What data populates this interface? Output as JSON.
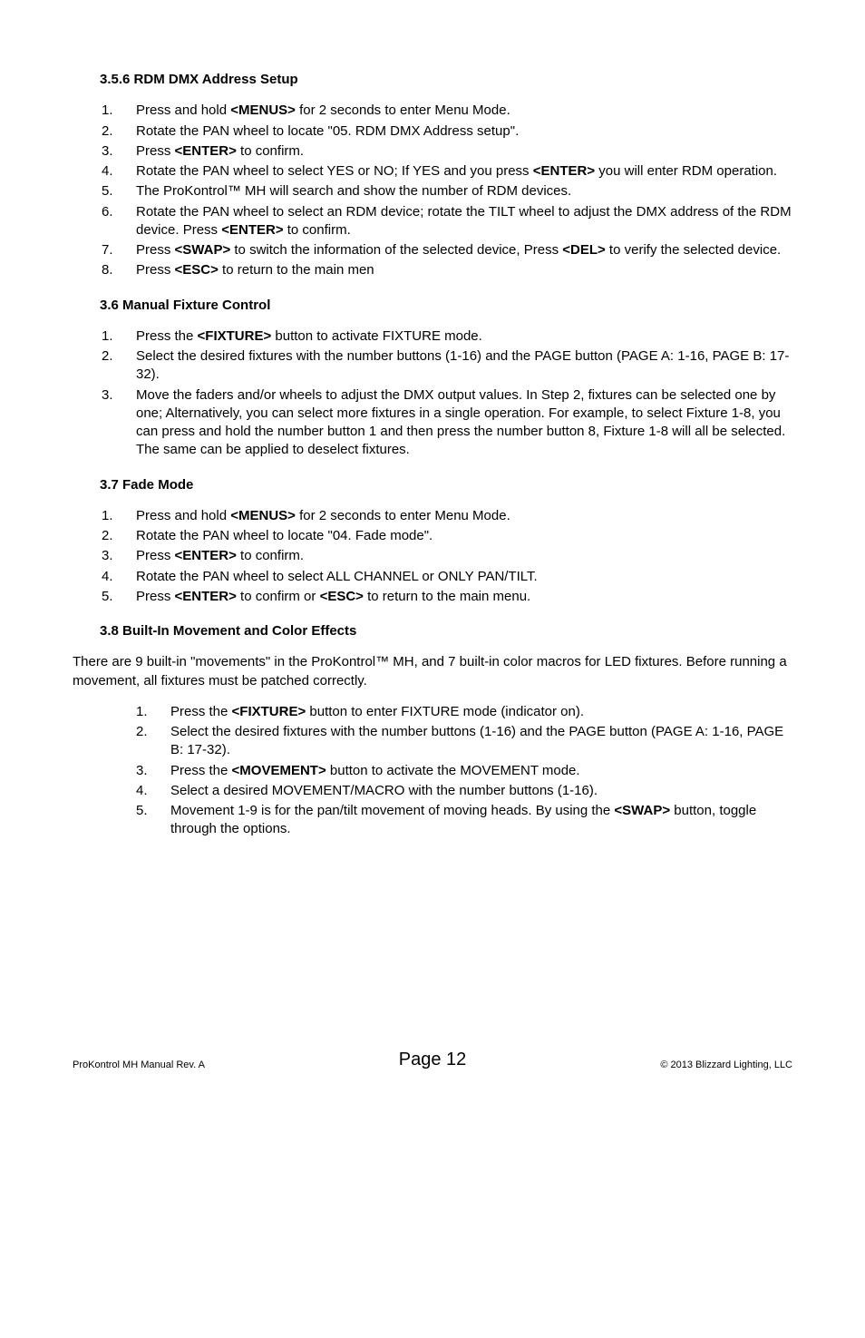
{
  "s356": {
    "title": "3.5.6   RDM DMX Address Setup",
    "items": [
      "Press and hold <b>&lt;MENUS&gt;</b> for 2 seconds to enter Menu Mode.",
      "Rotate the PAN wheel to locate \"05. RDM DMX Address setup\".",
      "Press <b>&lt;ENTER&gt;</b> to confirm.",
      "Rotate the PAN wheel to select YES or NO; If YES and you press <b>&lt;ENTER&gt;</b> you will enter RDM operation.",
      "The ProKontrol™ MH will search and show the number of RDM devices.",
      "Rotate the PAN wheel to select an RDM device; rotate the TILT wheel to adjust the DMX address of the RDM device. Press <b>&lt;ENTER&gt;</b> to confirm.",
      "Press <b>&lt;SWAP&gt;</b> to switch the information of the selected device, Press <b>&lt;DEL&gt;</b> to verify the selected device.",
      "Press <b>&lt;ESC&gt;</b> to return to the main men"
    ]
  },
  "s36": {
    "title": "3.6   Manual Fixture Control",
    "items": [
      "Press the <b>&lt;FIXTURE&gt;</b> button to activate FIXTURE mode.",
      "Select the desired fixtures with the number buttons (1-16) and the PAGE button (PAGE A: 1-16, PAGE B: 17-32).",
      "Move the faders and/or wheels to adjust the DMX output values. In Step 2, fixtures can be selected one by one; Alternatively, you can select more fixtures in a single operation. For example, to select Fixture 1-8, you can press and hold the number button 1 and then press the number button 8, Fixture 1-8 will all be selected. The same can be applied to deselect fixtures."
    ]
  },
  "s37": {
    "title": "3.7   Fade Mode",
    "items": [
      "Press and hold <b>&lt;MENUS&gt;</b> for 2 seconds to enter Menu Mode.",
      "Rotate the PAN wheel  to locate \"04. Fade mode\".",
      "Press <b>&lt;ENTER&gt;</b> to confirm.",
      "Rotate the PAN wheel to select ALL CHANNEL or ONLY PAN/TILT.",
      "Press <b>&lt;ENTER&gt;</b> to confirm or <b>&lt;ESC&gt;</b> to return to the main menu."
    ]
  },
  "s38": {
    "title": "3.8   Built-In Movement and Color Effects",
    "intro": "There are 9 built-in \"movements\" in the ProKontrol™ MH, and 7 built-in color macros for LED fixtures. Before running a movement, all fixtures must be patched correctly.",
    "items": [
      "Press the <b>&lt;FIXTURE&gt;</b> button to enter FIXTURE mode (indicator on).",
      "Select the desired fixtures with the number buttons (1-16) and the PAGE button (PAGE A: 1-16, PAGE B: 17-32).",
      "Press the <b>&lt;MOVEMENT&gt;</b> button to activate the MOVEMENT mode.",
      "Select a desired MOVEMENT/MACRO with the number buttons (1-16).",
      "Movement 1-9 is for the pan/tilt movement of moving heads. By using the <b>&lt;SWAP&gt;</b> button, toggle through the options."
    ]
  },
  "footer": {
    "left": "ProKontrol MH Manual Rev. A",
    "center": "Page 12",
    "right": "© 2013 Blizzard Lighting, LLC"
  }
}
